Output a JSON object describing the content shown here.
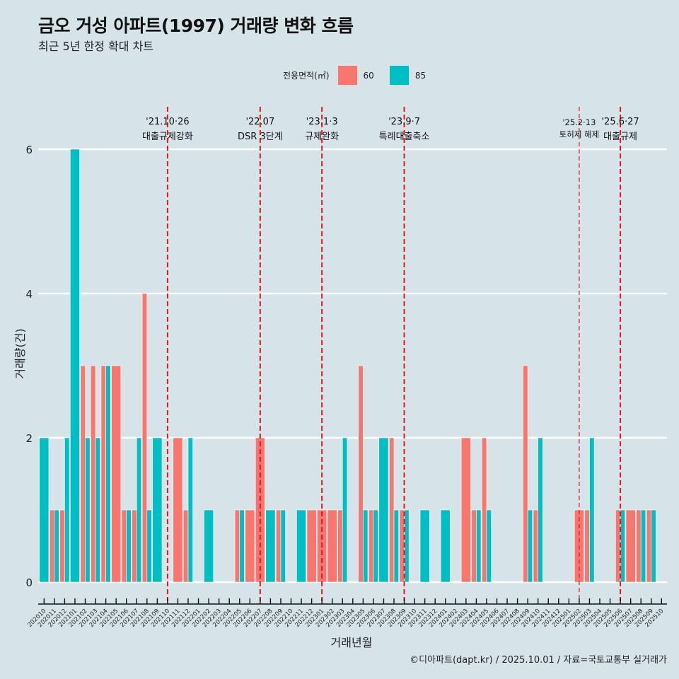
{
  "header": {
    "title": "금오 거성 아파트(1997) 거래량 변화 흐름",
    "subtitle": "최근 5년 한정 확대 차트"
  },
  "legend": {
    "title": "전용면적(㎡)",
    "items": [
      {
        "label": "60",
        "color": "#F8766D"
      },
      {
        "label": "85",
        "color": "#00BFC4"
      }
    ]
  },
  "footer": "©디아파트(dapt.kr) / 2025.10.01 / 자료=국토교통부 실거래가",
  "chart_data": {
    "type": "bar",
    "title": "금오 거성 아파트(1997) 거래량 변화 흐름",
    "subtitle": "최근 5년 한정 확대 차트",
    "xlabel": "거래년월",
    "ylabel": "거래량(건)",
    "ylim": [
      -0.3,
      6.8
    ],
    "yticks": [
      0,
      2,
      4,
      6
    ],
    "grid": "horizontal-major",
    "legend_position": "top",
    "bar_position": "dodge",
    "categories": [
      "202010",
      "202011",
      "202012",
      "202101",
      "202102",
      "202103",
      "202104",
      "202105",
      "202106",
      "202107",
      "202108",
      "202109",
      "202110",
      "202111",
      "202112",
      "202201",
      "202202",
      "202203",
      "202204",
      "202205",
      "202206",
      "202207",
      "202208",
      "202209",
      "202210",
      "202211",
      "202212",
      "202301",
      "202302",
      "202303",
      "202304",
      "202305",
      "202306",
      "202307",
      "202308",
      "202309",
      "202310",
      "202311",
      "202312",
      "202401",
      "202402",
      "202403",
      "202404",
      "202405",
      "202406",
      "202407",
      "202408",
      "202409",
      "202410",
      "202411",
      "202412",
      "202501",
      "202502",
      "202503",
      "202504",
      "202505",
      "202506",
      "202507",
      "202508",
      "202509",
      "202510"
    ],
    "series": [
      {
        "name": "60",
        "color": "#F8766D",
        "values": [
          null,
          1,
          1,
          null,
          3,
          3,
          3,
          3,
          1,
          1,
          4,
          null,
          null,
          2,
          1,
          null,
          null,
          null,
          null,
          1,
          1,
          2,
          null,
          1,
          null,
          null,
          1,
          1,
          1,
          1,
          null,
          3,
          1,
          null,
          2,
          1,
          null,
          null,
          null,
          null,
          null,
          2,
          1,
          2,
          null,
          null,
          null,
          3,
          1,
          null,
          null,
          null,
          1,
          1,
          null,
          null,
          1,
          1,
          1,
          1,
          null
        ]
      },
      {
        "name": "85",
        "color": "#00BFC4",
        "values": [
          2,
          1,
          2,
          6,
          2,
          2,
          3,
          null,
          1,
          2,
          1,
          2,
          null,
          null,
          2,
          null,
          1,
          null,
          null,
          1,
          null,
          null,
          1,
          1,
          null,
          1,
          null,
          null,
          null,
          2,
          null,
          1,
          1,
          2,
          1,
          1,
          null,
          1,
          null,
          1,
          null,
          null,
          1,
          1,
          null,
          null,
          null,
          1,
          2,
          null,
          null,
          null,
          null,
          2,
          null,
          null,
          1,
          null,
          1,
          1,
          null
        ]
      }
    ],
    "annotations": [
      {
        "month": "202110",
        "date_label": "'21.10·26",
        "event": "대출규제강화",
        "style": "major"
      },
      {
        "month": "202207",
        "date_label": "'22.07",
        "event": "DSR 3단계",
        "style": "major"
      },
      {
        "month": "202301",
        "date_label": "'23.1·3",
        "event": "규제완화",
        "style": "major"
      },
      {
        "month": "202309",
        "date_label": "'23.9·7",
        "event": "특례대출축소",
        "style": "major"
      },
      {
        "month": "202502",
        "date_label": "'25.2·13",
        "event": "토허제 해제",
        "style": "minor"
      },
      {
        "month": "202506",
        "date_label": "'25.6·27",
        "event": "대출규제",
        "style": "major"
      }
    ],
    "annotation_line_color": "#E8141C"
  }
}
